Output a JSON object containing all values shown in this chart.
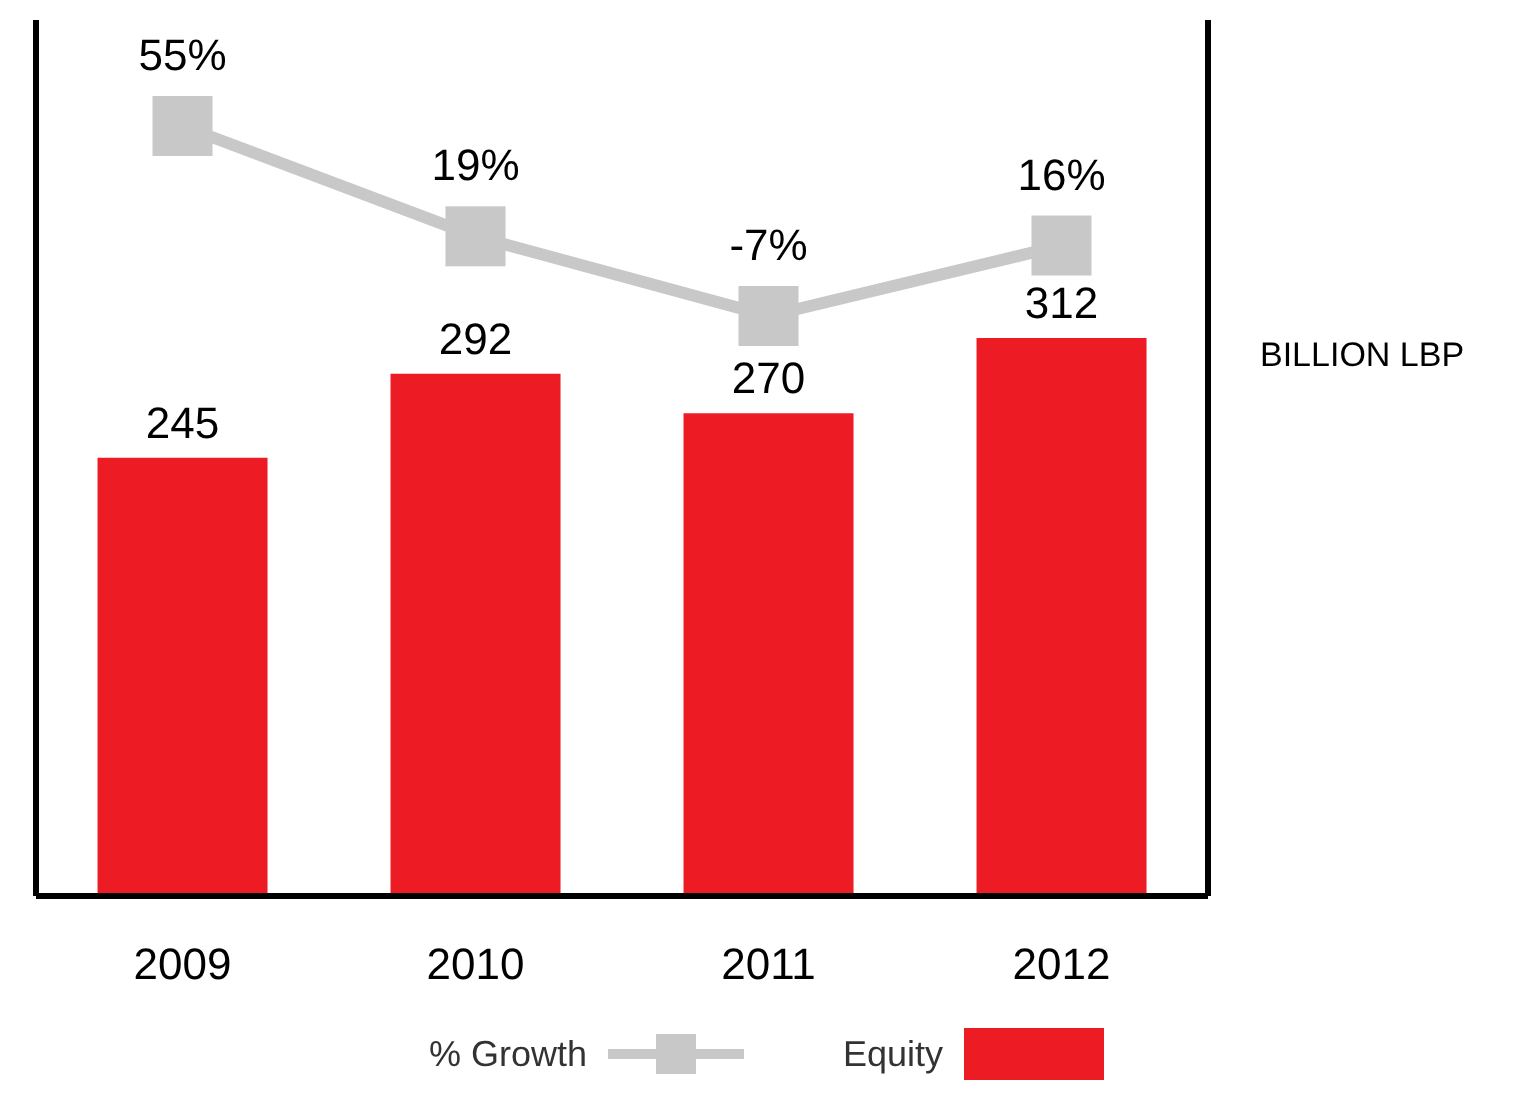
{
  "chart_data": [
    {
      "type": "line",
      "categories": [
        "2009",
        "2010",
        "2011",
        "2012"
      ],
      "series": [
        {
          "name": "% Growth",
          "color": "#c8c8c8",
          "values": [
            55,
            19,
            -7,
            16
          ],
          "value_labels": [
            "55%",
            "19%",
            "-7%",
            "16%"
          ]
        }
      ],
      "marker": "square",
      "line_style": "solid",
      "legend": "bottom",
      "tick_labels": false
    },
    {
      "type": "bar",
      "categories": [
        "2009",
        "2010",
        "2011",
        "2012"
      ],
      "ylabel": "BILLION LBP",
      "series": [
        {
          "name": "Equity",
          "color": "#ed1c24",
          "values": [
            245,
            292,
            270,
            312
          ]
        }
      ],
      "data_labels": true,
      "legend": "bottom",
      "tick_labels": "x"
    }
  ]
}
